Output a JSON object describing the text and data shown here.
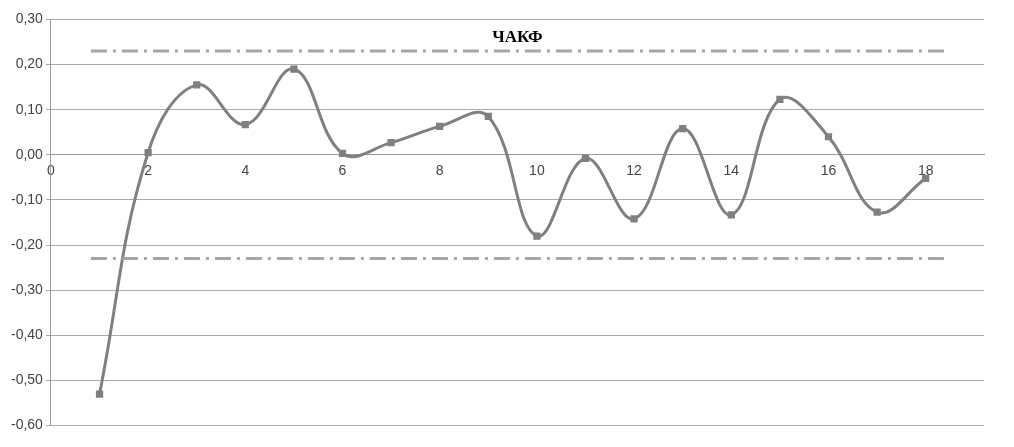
{
  "chart_data": {
    "type": "line",
    "title": "ЧАКФ",
    "x": [
      1,
      2,
      3,
      4,
      5,
      6,
      7,
      8,
      9,
      10,
      11,
      12,
      13,
      14,
      15,
      16,
      17,
      18
    ],
    "series": [
      {
        "color": "#808080",
        "values": [
          -0.53,
          0.005,
          0.155,
          0.067,
          0.19,
          0.003,
          0.027,
          0.063,
          0.085,
          -0.18,
          -0.008,
          -0.142,
          0.058,
          -0.133,
          0.123,
          0.04,
          -0.127,
          -0.052
        ]
      }
    ],
    "xlim": [
      0,
      19.2
    ],
    "xticks": [
      0,
      2,
      4,
      6,
      8,
      10,
      12,
      14,
      16,
      18
    ],
    "ylim": [
      -0.6,
      0.3
    ],
    "yticks": [
      {
        "value": -0.6,
        "label": "-0,60"
      },
      {
        "value": -0.5,
        "label": "-0,50"
      },
      {
        "value": -0.4,
        "label": "-0,40"
      },
      {
        "value": -0.3,
        "label": "-0,30"
      },
      {
        "value": -0.2,
        "label": "-0,20"
      },
      {
        "value": -0.1,
        "label": "-0,10"
      },
      {
        "value": 0,
        "label": "0,00"
      },
      {
        "value": 0.1,
        "label": "0,10"
      },
      {
        "value": 0.2,
        "label": "0,20"
      },
      {
        "value": 0.3,
        "label": "0,30"
      }
    ],
    "ref_lines": [
      {
        "axis": "y",
        "value": 0.23,
        "color": "#a6a6a6",
        "line_style": "dashed"
      },
      {
        "axis": "y",
        "value": -0.23,
        "color": "#a6a6a6",
        "line_style": "dashed"
      }
    ],
    "grid": "y",
    "marker": "square",
    "line_style": "solid",
    "legend": false
  }
}
